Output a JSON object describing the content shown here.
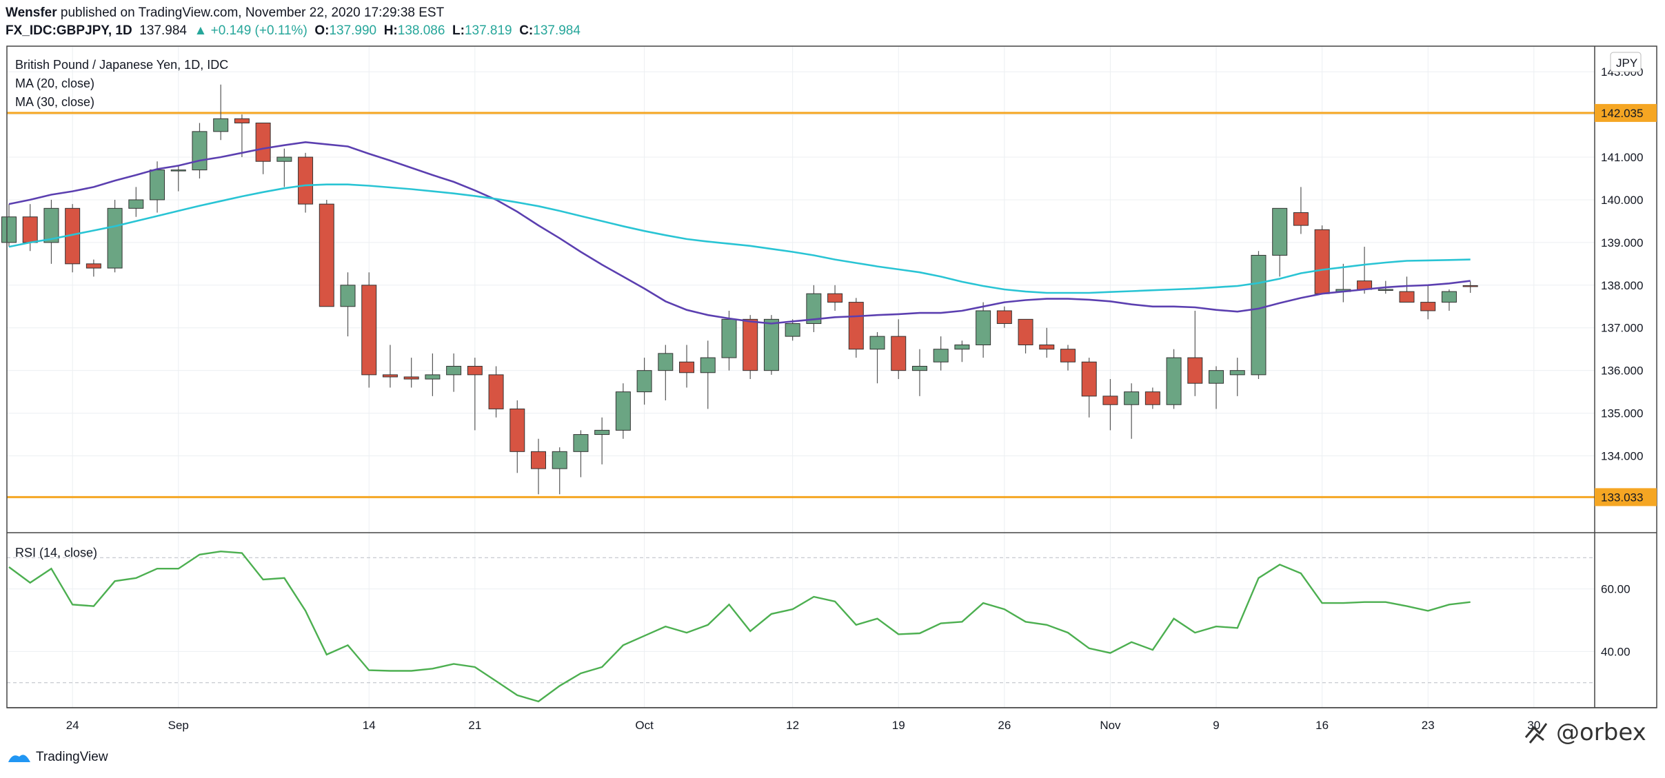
{
  "header": {
    "author": "Wensfer",
    "published": "published on TradingView.com, November 22, 2020 17:29:38 EST",
    "symbol": "FX_IDC:GBPJPY, 1D",
    "last": "137.984",
    "change": "▲ +0.149 (+0.11%)",
    "o_label": "O:",
    "o": "137.990",
    "h_label": "H:",
    "h": "138.086",
    "l_label": "L:",
    "l": "137.819",
    "c_label": "C:",
    "c": "137.984"
  },
  "legend": {
    "title": "British Pound / Japanese Yen, 1D, IDC",
    "ma20": "MA (20, close)",
    "ma30": "MA (30, close)",
    "rsi": "RSI (14, close)",
    "currency": "JPY"
  },
  "footer": {
    "brand": "TradingView",
    "watermark": "@orbex"
  },
  "colors": {
    "up": "#6ba583",
    "down": "#d75442",
    "ma20": "#5b3fb0",
    "ma30": "#29c4d4",
    "rsi": "#4caf50",
    "level": "#f5a623"
  },
  "chart_data": [
    {
      "type": "candlestick",
      "title": "British Pound / Japanese Yen, 1D, IDC",
      "ylim": [
        132.2,
        143.6
      ],
      "y_ticks": [
        "143.000",
        "142.000",
        "141.000",
        "140.000",
        "139.000",
        "138.000",
        "137.000",
        "136.000",
        "135.000",
        "134.000"
      ],
      "x_ticks": [
        {
          "label": "24",
          "i": 3
        },
        {
          "label": "Sep",
          "i": 8
        },
        {
          "label": "14",
          "i": 17
        },
        {
          "label": "21",
          "i": 22
        },
        {
          "label": "Oct",
          "i": 30
        },
        {
          "label": "12",
          "i": 37
        },
        {
          "label": "19",
          "i": 42
        },
        {
          "label": "26",
          "i": 47
        },
        {
          "label": "Nov",
          "i": 52
        },
        {
          "label": "9",
          "i": 57
        },
        {
          "label": "16",
          "i": 62
        },
        {
          "label": "23",
          "i": 67
        },
        {
          "label": "30",
          "i": 72
        }
      ],
      "levels": [
        {
          "value": 142.035,
          "label": "142.035"
        },
        {
          "value": 133.033,
          "label": "133.033"
        }
      ],
      "candles": [
        [
          139.0,
          139.9,
          138.9,
          139.6
        ],
        [
          139.6,
          139.9,
          138.8,
          139.0
        ],
        [
          139.0,
          140.0,
          138.5,
          139.8
        ],
        [
          139.8,
          139.9,
          138.3,
          138.5
        ],
        [
          138.5,
          138.6,
          138.2,
          138.4
        ],
        [
          138.4,
          140.0,
          138.3,
          139.8
        ],
        [
          139.8,
          140.3,
          139.6,
          140.0
        ],
        [
          140.0,
          140.9,
          139.7,
          140.7
        ],
        [
          140.7,
          140.8,
          140.2,
          140.7
        ],
        [
          140.7,
          141.8,
          140.5,
          141.6
        ],
        [
          141.6,
          142.7,
          141.4,
          141.9
        ],
        [
          141.9,
          142.0,
          141.0,
          141.8
        ],
        [
          141.8,
          141.8,
          140.6,
          140.9
        ],
        [
          140.9,
          141.2,
          140.3,
          141.0
        ],
        [
          141.0,
          141.1,
          139.7,
          139.9
        ],
        [
          139.9,
          140.0,
          137.5,
          137.5
        ],
        [
          137.5,
          138.3,
          136.8,
          138.0
        ],
        [
          138.0,
          138.3,
          135.6,
          135.9
        ],
        [
          135.9,
          136.6,
          135.6,
          135.85
        ],
        [
          135.85,
          136.3,
          135.6,
          135.8
        ],
        [
          135.8,
          136.4,
          135.4,
          135.9
        ],
        [
          135.9,
          136.4,
          135.5,
          136.1
        ],
        [
          136.1,
          136.3,
          134.6,
          135.9
        ],
        [
          135.9,
          136.1,
          134.9,
          135.1
        ],
        [
          135.1,
          135.3,
          133.6,
          134.1
        ],
        [
          134.1,
          134.4,
          133.1,
          133.7
        ],
        [
          133.7,
          134.2,
          133.1,
          134.1
        ],
        [
          134.1,
          134.6,
          133.5,
          134.5
        ],
        [
          134.5,
          134.9,
          133.8,
          134.6
        ],
        [
          134.6,
          135.7,
          134.4,
          135.5
        ],
        [
          135.5,
          136.3,
          135.2,
          136.0
        ],
        [
          136.0,
          136.6,
          135.3,
          136.4
        ],
        [
          136.2,
          136.6,
          135.6,
          135.95
        ],
        [
          135.95,
          136.7,
          135.1,
          136.3
        ],
        [
          136.3,
          137.4,
          136.0,
          137.2
        ],
        [
          137.2,
          137.3,
          135.8,
          136.0
        ],
        [
          136.0,
          137.3,
          135.9,
          137.2
        ],
        [
          136.8,
          137.2,
          136.7,
          137.1
        ],
        [
          137.1,
          138.0,
          136.9,
          137.8
        ],
        [
          137.8,
          138.0,
          137.4,
          137.6
        ],
        [
          137.6,
          137.7,
          136.3,
          136.5
        ],
        [
          136.5,
          136.9,
          135.7,
          136.8
        ],
        [
          136.8,
          137.2,
          135.8,
          136.0
        ],
        [
          136.0,
          136.5,
          135.4,
          136.1
        ],
        [
          136.2,
          136.8,
          136.0,
          136.5
        ],
        [
          136.5,
          136.7,
          136.2,
          136.6
        ],
        [
          136.6,
          137.6,
          136.3,
          137.4
        ],
        [
          137.4,
          137.5,
          137.0,
          137.1
        ],
        [
          137.2,
          137.2,
          136.4,
          136.6
        ],
        [
          136.6,
          137.0,
          136.3,
          136.5
        ],
        [
          136.5,
          136.6,
          136.0,
          136.2
        ],
        [
          136.2,
          136.3,
          134.9,
          135.4
        ],
        [
          135.4,
          135.8,
          134.6,
          135.2
        ],
        [
          135.2,
          135.7,
          134.4,
          135.5
        ],
        [
          135.5,
          135.6,
          135.1,
          135.2
        ],
        [
          135.2,
          136.5,
          135.1,
          136.3
        ],
        [
          136.3,
          137.4,
          135.4,
          135.7
        ],
        [
          135.7,
          136.1,
          135.1,
          136.0
        ],
        [
          135.9,
          136.3,
          135.4,
          136.0
        ],
        [
          135.9,
          138.8,
          135.8,
          138.7
        ],
        [
          138.7,
          139.8,
          138.2,
          139.8
        ],
        [
          139.7,
          140.3,
          139.2,
          139.4
        ],
        [
          139.3,
          139.4,
          137.8,
          137.8
        ],
        [
          137.85,
          138.5,
          137.6,
          137.9
        ],
        [
          138.1,
          138.9,
          137.8,
          137.9
        ],
        [
          137.9,
          138.1,
          137.8,
          137.9
        ],
        [
          137.85,
          138.2,
          137.6,
          137.6
        ],
        [
          137.6,
          138.0,
          137.2,
          137.4
        ],
        [
          137.6,
          137.9,
          137.4,
          137.85
        ],
        [
          137.99,
          138.09,
          137.82,
          137.98
        ]
      ],
      "series": [
        {
          "name": "MA (20, close)",
          "values": [
            139.9,
            140.0,
            140.12,
            140.2,
            140.3,
            140.45,
            140.58,
            140.72,
            140.8,
            140.92,
            141.0,
            141.1,
            141.2,
            141.28,
            141.35,
            141.3,
            141.25,
            141.08,
            140.92,
            140.75,
            140.58,
            140.42,
            140.22,
            140.0,
            139.72,
            139.4,
            139.1,
            138.78,
            138.48,
            138.2,
            137.92,
            137.62,
            137.42,
            137.3,
            137.22,
            137.15,
            137.1,
            137.15,
            137.2,
            137.25,
            137.27,
            137.3,
            137.32,
            137.35,
            137.35,
            137.4,
            137.5,
            137.6,
            137.65,
            137.68,
            137.68,
            137.66,
            137.62,
            137.55,
            137.5,
            137.5,
            137.48,
            137.42,
            137.38,
            137.45,
            137.58,
            137.7,
            137.8,
            137.85,
            137.9,
            137.95,
            137.98,
            138.0,
            138.04,
            138.1
          ]
        },
        {
          "name": "MA (30, close)",
          "values": [
            138.9,
            139.0,
            139.08,
            139.18,
            139.28,
            139.38,
            139.5,
            139.62,
            139.74,
            139.86,
            139.97,
            140.08,
            140.18,
            140.27,
            140.34,
            140.36,
            140.36,
            140.33,
            140.29,
            140.25,
            140.2,
            140.15,
            140.09,
            140.02,
            139.94,
            139.85,
            139.74,
            139.62,
            139.5,
            139.38,
            139.27,
            139.17,
            139.08,
            139.02,
            138.97,
            138.92,
            138.85,
            138.78,
            138.7,
            138.6,
            138.52,
            138.44,
            138.37,
            138.3,
            138.2,
            138.08,
            137.98,
            137.9,
            137.85,
            137.82,
            137.82,
            137.82,
            137.84,
            137.86,
            137.88,
            137.9,
            137.92,
            137.95,
            137.98,
            138.05,
            138.15,
            138.28,
            138.36,
            138.42,
            138.48,
            138.53,
            138.57,
            138.58,
            138.59,
            138.6
          ]
        }
      ]
    },
    {
      "type": "line",
      "title": "RSI (14, close)",
      "ylim": [
        22,
        78
      ],
      "y_ticks": [
        "60.00",
        "40.00"
      ],
      "bands": [
        70,
        30
      ],
      "series": [
        {
          "name": "RSI (14, close)",
          "values": [
            67.0,
            62.0,
            66.5,
            55.0,
            54.5,
            62.5,
            63.5,
            66.5,
            66.5,
            71.0,
            72.0,
            71.5,
            63.0,
            63.5,
            53.0,
            39.0,
            42.0,
            34.0,
            33.8,
            33.8,
            34.5,
            36.0,
            35.0,
            30.5,
            26.0,
            24.0,
            29.0,
            33.0,
            35.0,
            42.0,
            45.0,
            48.0,
            46.0,
            48.5,
            55.0,
            46.5,
            52.0,
            53.5,
            57.5,
            56.0,
            48.5,
            50.5,
            45.5,
            45.8,
            49.0,
            49.5,
            55.5,
            53.5,
            49.5,
            48.5,
            46.0,
            41.0,
            39.5,
            43.0,
            40.5,
            50.5,
            46.0,
            48.0,
            47.5,
            63.5,
            67.8,
            65.0,
            55.5,
            55.5,
            55.8,
            55.8,
            54.5,
            53.0,
            55.0,
            55.8
          ]
        }
      ]
    }
  ]
}
